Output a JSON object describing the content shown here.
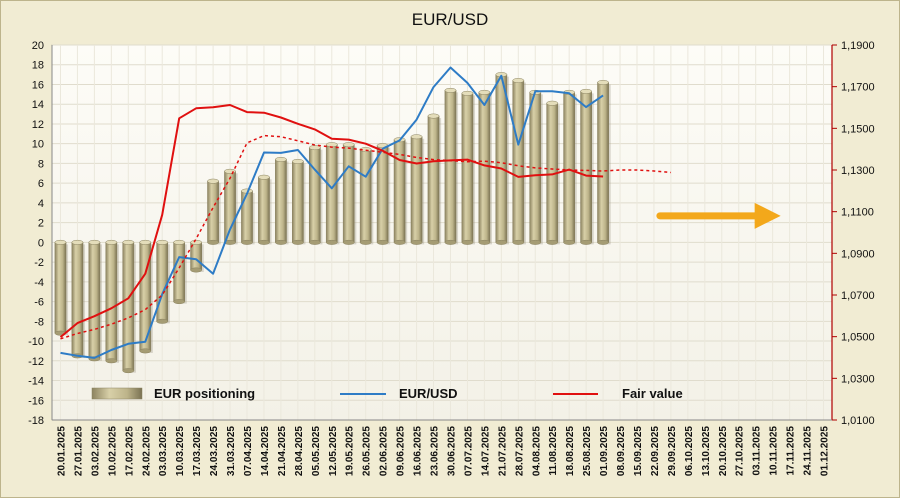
{
  "chart_data": {
    "type": "bar",
    "title": "EUR/USD",
    "x_tick_labels": [
      "20.01.2025",
      "27.01.2025",
      "03.02.2025",
      "10.02.2025",
      "17.02.2025",
      "24.02.2025",
      "03.03.2025",
      "10.03.2025",
      "17.03.2025",
      "24.03.2025",
      "31.03.2025",
      "07.04.2025",
      "14.04.2025",
      "21.04.2025",
      "28.04.2025",
      "05.05.2025",
      "12.05.2025",
      "19.05.2025",
      "26.05.2025",
      "02.06.2025",
      "09.06.2025",
      "16.06.2025",
      "23.06.2025",
      "30.06.2025",
      "07.07.2025",
      "14.07.2025",
      "21.07.2025",
      "28.07.2025",
      "04.08.2025",
      "11.08.2025",
      "18.08.2025",
      "25.08.2025",
      "01.09.2025",
      "08.09.2025",
      "15.09.2025",
      "22.09.2025",
      "29.09.2025",
      "06.10.2025",
      "13.10.2025",
      "20.10.2025",
      "27.10.2025",
      "03.11.2025",
      "10.11.2025",
      "17.11.2025",
      "24.11.2025",
      "01.12.2025"
    ],
    "y_left": {
      "min": -18,
      "max": 20,
      "step": 2
    },
    "y_right": {
      "ticks": [
        "1,0100",
        "1,0300",
        "1,0500",
        "1,0700",
        "1,0900",
        "1,1100",
        "1,1300",
        "1,1500",
        "1,1700",
        "1,1900"
      ],
      "min": 1.01,
      "max": 1.19
    },
    "series": [
      {
        "name": "EUR positioning",
        "kind": "bar",
        "axis": "left",
        "color": "#bdb48a",
        "values": [
          -9.2,
          -11.5,
          -11.8,
          -12,
          -13,
          -11,
          -8,
          -6,
          -2.8,
          6.2,
          7.2,
          5.2,
          6.6,
          8.4,
          8.2,
          9.6,
          9.9,
          9.9,
          9.4,
          9.8,
          10.4,
          10.7,
          12.8,
          15.4,
          15.1,
          15.2,
          17,
          16.4,
          15.2,
          14.1,
          15.2,
          15.3,
          16.2
        ]
      },
      {
        "name": "EUR/USD",
        "kind": "line",
        "axis": "right",
        "color": "#2e7cc6",
        "values": [
          1.0422,
          1.0408,
          1.0398,
          1.0436,
          1.0466,
          1.0476,
          1.0704,
          1.0882,
          1.0872,
          1.0802,
          1.1015,
          1.1186,
          1.1384,
          1.1382,
          1.1396,
          1.1302,
          1.1212,
          1.1318,
          1.1268,
          1.1402,
          1.1442,
          1.1542,
          1.1698,
          1.1792,
          1.1718,
          1.1612,
          1.1752,
          1.1422,
          1.1678,
          1.1678,
          1.1668,
          1.1602,
          1.1658
        ]
      },
      {
        "name": "Fair value",
        "kind": "line",
        "axis": "right",
        "color": "#e01010",
        "values": [
          1.0498,
          1.0565,
          1.0598,
          1.0636,
          1.0684,
          1.0802,
          1.1085,
          1.1548,
          1.1596,
          1.1601,
          1.1612,
          1.1578,
          1.1575,
          1.1552,
          1.1522,
          1.1495,
          1.145,
          1.1446,
          1.1426,
          1.1392,
          1.1348,
          1.1331,
          1.1342,
          1.1346,
          1.135,
          1.1322,
          1.1307,
          1.1267,
          1.1275,
          1.1279,
          1.1302,
          1.1273,
          1.1269
        ]
      },
      {
        "name": "",
        "kind": "dashed-line",
        "axis": "right",
        "color": "#e01010",
        "values": [
          1.049,
          1.0515,
          1.0535,
          1.056,
          1.059,
          1.063,
          1.07,
          1.083,
          1.097,
          1.112,
          1.126,
          1.143,
          1.1465,
          1.146,
          1.144,
          1.142,
          1.141,
          1.1405,
          1.1395,
          1.1385,
          1.1375,
          1.136,
          1.135,
          1.1345,
          1.134,
          1.1342,
          1.1335,
          1.132,
          1.131,
          1.1305,
          1.13,
          1.1298,
          1.1295,
          1.13,
          1.13,
          1.1295,
          1.1288
        ]
      }
    ],
    "legend": {
      "position": "bottom-inside",
      "entries": [
        "EUR positioning",
        "EUR/USD",
        "Fair value"
      ]
    },
    "annotation": {
      "kind": "arrow",
      "direction": "right",
      "color": "#f3a81b"
    },
    "grid": true
  }
}
